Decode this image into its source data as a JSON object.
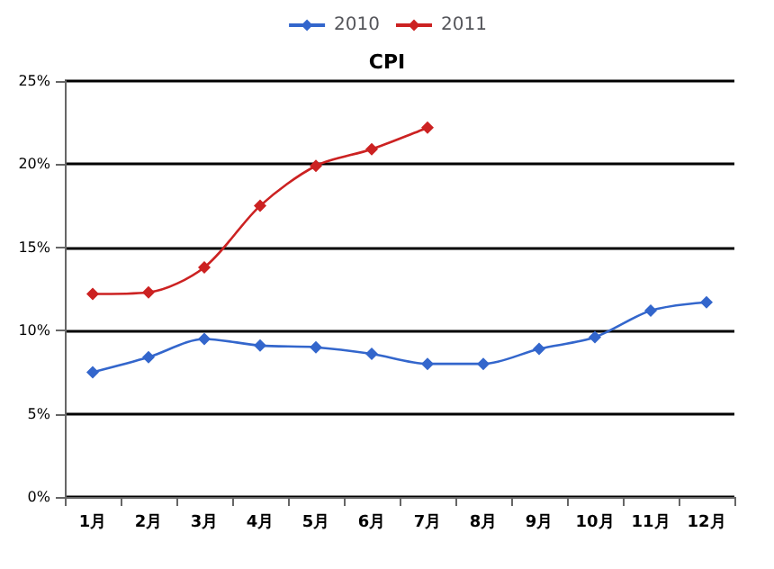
{
  "chart_data": {
    "type": "line",
    "title": "CPI",
    "categories": [
      "1月",
      "2月",
      "3月",
      "4月",
      "5月",
      "6月",
      "7月",
      "8月",
      "9月",
      "10月",
      "11月",
      "12月"
    ],
    "series": [
      {
        "name": "2010",
        "color": "#3366cc",
        "values": [
          7.5,
          8.4,
          9.5,
          9.1,
          9.0,
          8.6,
          8.0,
          8.0,
          8.9,
          9.6,
          11.2,
          11.7
        ]
      },
      {
        "name": "2011",
        "color": "#cc2222",
        "values": [
          12.2,
          12.3,
          13.8,
          17.5,
          19.9,
          20.9,
          22.2,
          null,
          null,
          null,
          null,
          null
        ]
      }
    ],
    "ylim": [
      0,
      25
    ],
    "yticks": [
      {
        "value": 0,
        "label": "0%"
      },
      {
        "value": 5,
        "label": "5%"
      },
      {
        "value": 10,
        "label": "10%"
      },
      {
        "value": 15,
        "label": "15%"
      },
      {
        "value": 20,
        "label": "20%"
      },
      {
        "value": 25,
        "label": "25%"
      }
    ],
    "grid": "y",
    "legend": "top",
    "marker": "diamond",
    "line_style": "solid"
  }
}
